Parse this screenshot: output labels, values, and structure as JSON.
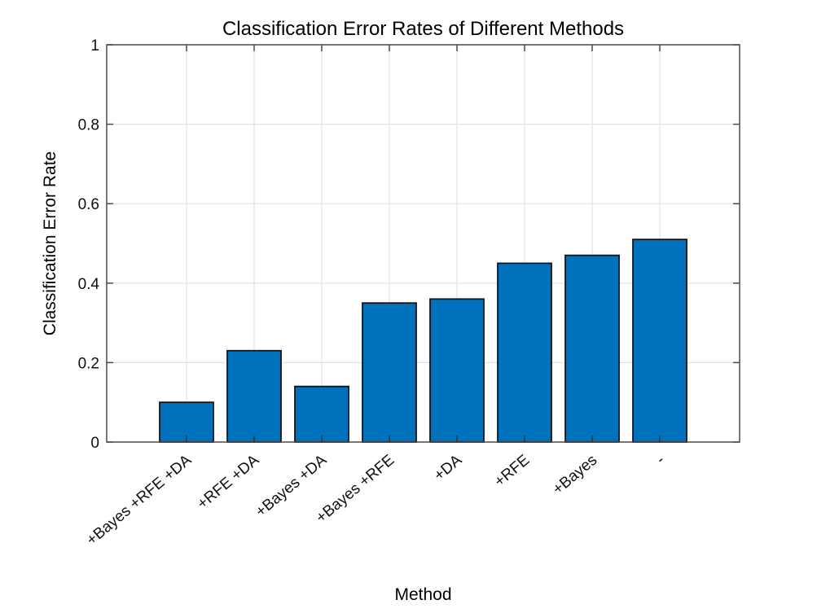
{
  "chart_data": {
    "type": "bar",
    "title": "Classification Error Rates of Different Methods",
    "xlabel": "Method",
    "ylabel": "Classification Error Rate",
    "categories": [
      "+Bayes +RFE +DA",
      "+RFE +DA",
      "+Bayes +DA",
      "+Bayes +RFE",
      "+DA",
      "+RFE",
      "+Bayes",
      "-"
    ],
    "values": [
      0.1,
      0.23,
      0.14,
      0.35,
      0.36,
      0.45,
      0.47,
      0.51
    ],
    "ylim": [
      0,
      1
    ],
    "yticks": [
      0,
      0.2,
      0.4,
      0.6,
      0.8,
      1
    ],
    "ytick_labels": [
      "0",
      "0.2",
      "0.4",
      "0.6",
      "0.8",
      "1"
    ],
    "xtick_rotation_deg": -40,
    "grid": true,
    "legend": null,
    "bar_color": "#0072BD",
    "bar_edge_color": "#10151c",
    "axis_color": "#4a4a4a",
    "grid_color": "#e2e2e2",
    "text_color": "#0f0f0f"
  }
}
